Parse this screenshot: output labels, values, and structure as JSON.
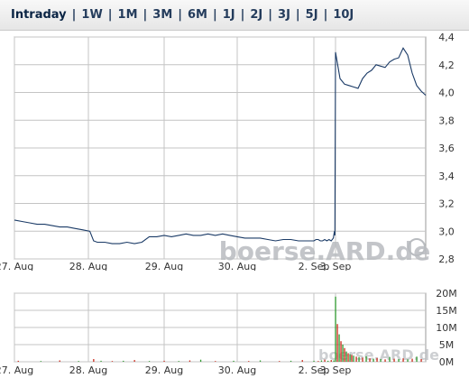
{
  "tabs": [
    {
      "label": "Intraday",
      "active": true
    },
    {
      "label": "1W",
      "active": false
    },
    {
      "label": "1M",
      "active": false
    },
    {
      "label": "3M",
      "active": false
    },
    {
      "label": "6M",
      "active": false
    },
    {
      "label": "1J",
      "active": false
    },
    {
      "label": "2J",
      "active": false
    },
    {
      "label": "3J",
      "active": false
    },
    {
      "label": "5J",
      "active": false
    },
    {
      "label": "10J",
      "active": false
    }
  ],
  "colors": {
    "price_line": "#1a3a66",
    "grid": "#c4c4c4",
    "axis_text": "#333333",
    "watermark": "#b9bcc0",
    "volume_up": "#2e9a2e",
    "volume_down": "#cc2a1c",
    "frame": "#9a9a9a"
  },
  "watermark_text": "boerse.ARD.de",
  "chart_data": [
    {
      "type": "line",
      "x_ticks": [
        "27. Aug",
        "28. Aug",
        "29. Aug",
        "30. Aug",
        "2. Sep",
        "3. Sep"
      ],
      "y_ticks": [
        "2,8",
        "3,0",
        "3,2",
        "3,4",
        "3,6",
        "3,8",
        "4,0",
        "4,2",
        "4,4"
      ],
      "ylim": [
        2.8,
        4.4
      ],
      "x_range": [
        0,
        6
      ],
      "series": [
        {
          "x": [
            0,
            0.1,
            0.2,
            0.3,
            0.4,
            0.5,
            0.6,
            0.7,
            0.8,
            0.9,
            1.0,
            1.05,
            1.1,
            1.2,
            1.3,
            1.4,
            1.5,
            1.6,
            1.7,
            1.8,
            1.9,
            2.0,
            2.1,
            2.2,
            2.3,
            2.4,
            2.5,
            2.6,
            2.7,
            2.8,
            2.9,
            3.0,
            3.1,
            3.2,
            3.3,
            3.4,
            3.5,
            3.6,
            3.7,
            3.8,
            3.9,
            4.0,
            4.1,
            4.2,
            4.3,
            4.4,
            4.5,
            4.6,
            4.7,
            4.8,
            4.9,
            4.95,
            4.97,
            5.0,
            5.05,
            5.1,
            5.15,
            5.2,
            5.25,
            5.3,
            5.35,
            5.4,
            5.45,
            5.5,
            5.55,
            5.6,
            5.65,
            5.7,
            5.75,
            5.8,
            5.85,
            5.9,
            5.95,
            6.0
          ],
          "values": [
            3.08,
            3.07,
            3.06,
            3.05,
            3.05,
            3.04,
            3.03,
            3.03,
            3.02,
            3.01,
            3.0,
            2.93,
            2.92,
            2.92,
            2.91,
            2.91,
            2.92,
            2.91,
            2.92,
            2.96,
            2.96,
            2.97,
            2.96,
            2.97,
            2.98,
            2.97,
            2.97,
            2.98,
            2.97,
            2.98,
            2.97,
            2.96,
            2.95,
            2.95,
            2.95,
            2.94,
            2.93,
            2.94,
            2.94,
            2.93,
            2.93,
            2.93,
            2.94,
            2.94,
            2.93,
            2.93,
            2.94,
            2.93,
            2.94,
            2.93,
            2.95,
            3.0,
            2.97,
            4.29,
            4.1,
            4.06,
            4.05,
            4.04,
            4.03,
            4.1,
            4.14,
            4.16,
            4.2,
            4.19,
            4.18,
            4.22,
            4.24,
            4.25,
            4.32,
            4.27,
            4.14,
            4.05,
            4.01,
            3.98
          ]
        }
      ]
    },
    {
      "type": "bar",
      "x_ticks": [
        "27. Aug",
        "28. Aug",
        "29. Aug",
        "30. Aug",
        "2. Sep",
        "3. Sep"
      ],
      "y_ticks": [
        "0M",
        "5M",
        "10M",
        "15M",
        "20M"
      ],
      "ylim": [
        0,
        20
      ],
      "x_range": [
        0,
        6
      ],
      "series": [
        {
          "x": [
            0.05,
            0.35,
            0.6,
            0.85,
            1.05,
            1.15,
            1.3,
            1.45,
            1.6,
            1.8,
            2.0,
            2.2,
            2.35,
            2.5,
            2.7,
            2.95,
            3.15,
            3.3,
            3.55,
            3.7,
            3.85,
            4.0,
            4.2,
            4.35,
            4.5,
            4.65,
            4.8,
            4.92,
            5.0,
            5.02,
            5.04,
            5.06,
            5.08,
            5.1,
            5.12,
            5.14,
            5.16,
            5.18,
            5.2,
            5.23,
            5.26,
            5.3,
            5.34,
            5.38,
            5.42,
            5.46,
            5.5,
            5.55,
            5.6,
            5.65,
            5.7,
            5.75,
            5.8,
            5.85,
            5.9,
            5.95
          ],
          "values": [
            0.3,
            0.2,
            0.4,
            0.2,
            0.8,
            0.3,
            0.2,
            0.3,
            0.5,
            0.2,
            0.3,
            0.2,
            0.4,
            0.6,
            0.2,
            0.3,
            0.2,
            0.4,
            0.2,
            0.3,
            0.5,
            0.3,
            0.2,
            0.4,
            0.6,
            0.3,
            0.5,
            0.4,
            19.0,
            11.0,
            8.0,
            6.0,
            5.0,
            4.0,
            3.0,
            2.5,
            2.2,
            2.0,
            1.8,
            1.5,
            1.4,
            1.2,
            1.6,
            1.0,
            0.9,
            1.1,
            0.8,
            0.7,
            1.4,
            0.9,
            0.8,
            1.0,
            0.7,
            0.9,
            1.5,
            0.8
          ],
          "colors": [
            "down",
            "up",
            "down",
            "up",
            "down",
            "up",
            "down",
            "up",
            "down",
            "up",
            "down",
            "up",
            "down",
            "up",
            "down",
            "up",
            "down",
            "up",
            "down",
            "up",
            "down",
            "up",
            "down",
            "up",
            "down",
            "up",
            "down",
            "up",
            "up",
            "down",
            "up",
            "down",
            "up",
            "down",
            "up",
            "down",
            "up",
            "down",
            "up",
            "down",
            "up",
            "down",
            "up",
            "down",
            "up",
            "down",
            "up",
            "down",
            "up",
            "down",
            "up",
            "down",
            "up",
            "down",
            "up",
            "down"
          ]
        }
      ]
    }
  ]
}
